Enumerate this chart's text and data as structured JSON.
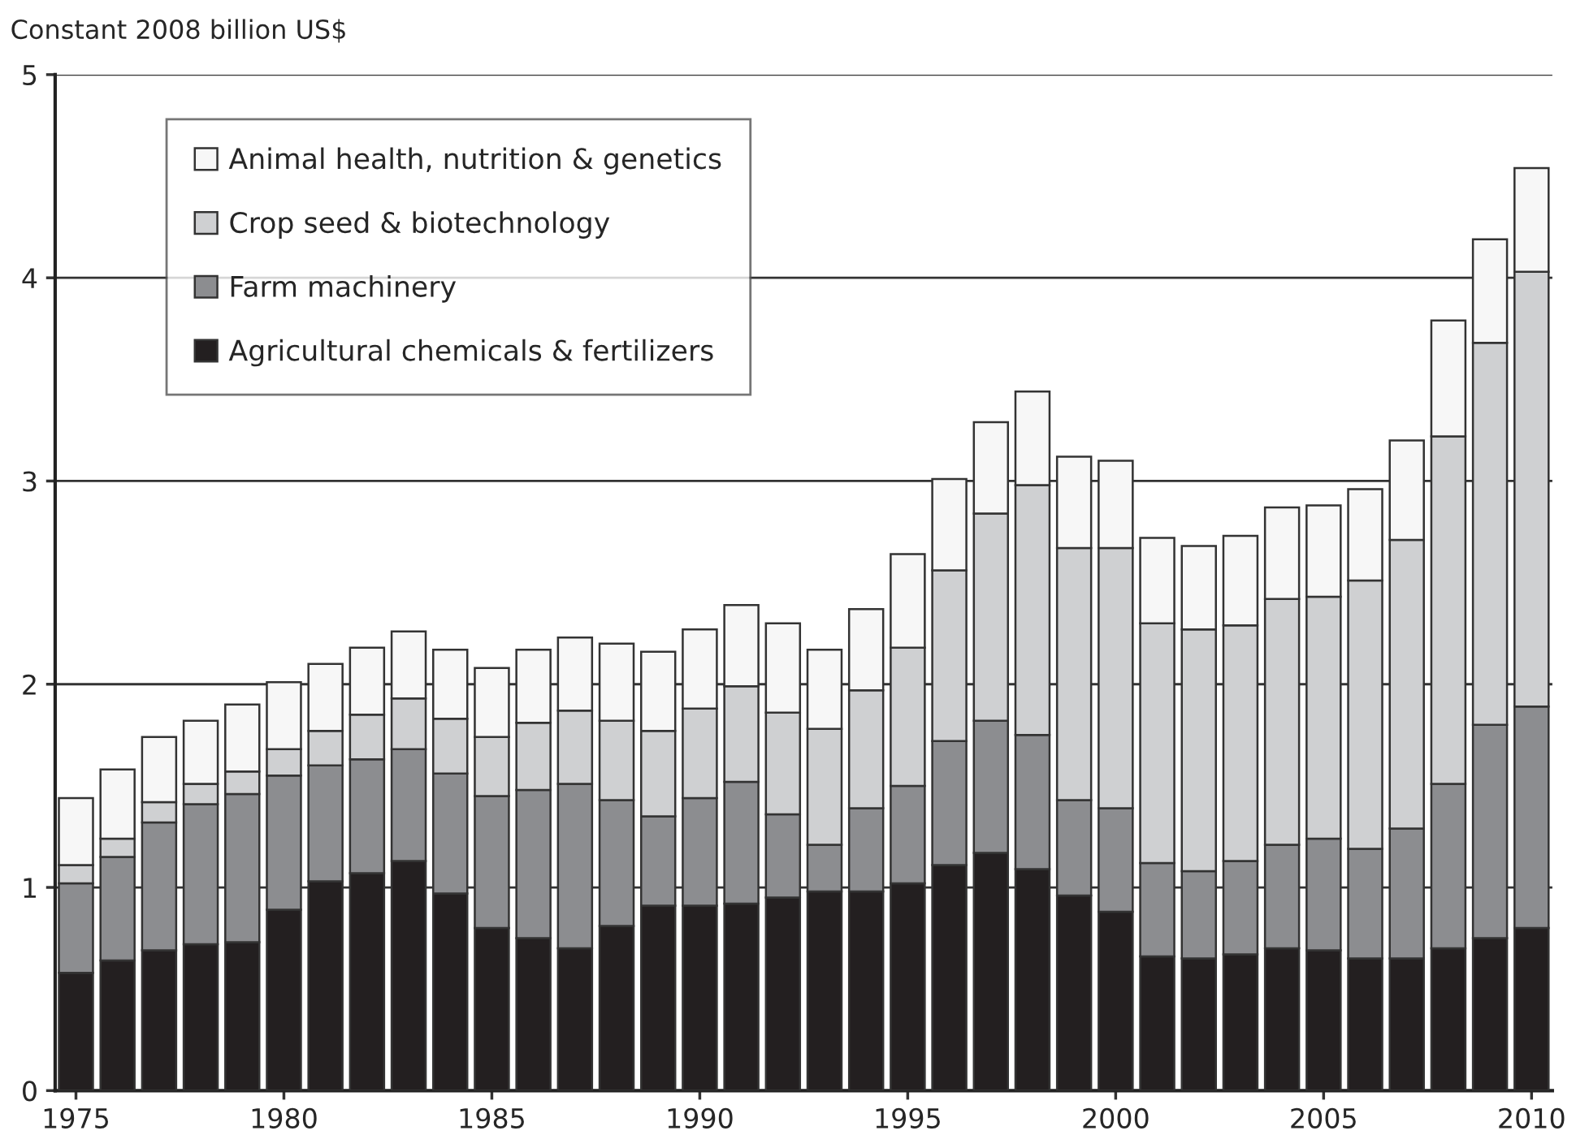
{
  "chart_data": {
    "type": "bar",
    "stacked": true,
    "ylabel": "Constant 2008 billion US$",
    "x": [
      1975,
      1976,
      1977,
      1978,
      1979,
      1980,
      1981,
      1982,
      1983,
      1984,
      1985,
      1986,
      1987,
      1988,
      1989,
      1990,
      1991,
      1992,
      1993,
      1994,
      1995,
      1996,
      1997,
      1998,
      1999,
      2000,
      2001,
      2002,
      2003,
      2004,
      2005,
      2006,
      2007,
      2008,
      2009,
      2010
    ],
    "xlim": [
      1974.5,
      2010.5
    ],
    "xticks": [
      1975,
      1980,
      1985,
      1990,
      1995,
      2000,
      2005,
      2010
    ],
    "ylim": [
      0,
      5
    ],
    "yticks": [
      0,
      1,
      2,
      3,
      4,
      5
    ],
    "grid": "y",
    "legend": "top left",
    "series": [
      {
        "name": "Agricultural chemicals & fertilizers",
        "color": "#231f20",
        "values": [
          0.58,
          0.64,
          0.69,
          0.72,
          0.73,
          0.89,
          1.03,
          1.07,
          1.13,
          0.97,
          0.8,
          0.75,
          0.7,
          0.81,
          0.91,
          0.91,
          0.92,
          0.95,
          0.98,
          0.98,
          1.02,
          1.11,
          1.17,
          1.09,
          0.96,
          0.88,
          0.66,
          0.65,
          0.67,
          0.7,
          0.69,
          0.65,
          0.65,
          0.7,
          0.75,
          0.8
        ]
      },
      {
        "name": "Farm machinery",
        "color": "#8c8d90",
        "values": [
          0.44,
          0.51,
          0.63,
          0.69,
          0.73,
          0.66,
          0.57,
          0.56,
          0.55,
          0.59,
          0.65,
          0.73,
          0.81,
          0.62,
          0.44,
          0.53,
          0.6,
          0.41,
          0.23,
          0.41,
          0.48,
          0.61,
          0.65,
          0.66,
          0.47,
          0.51,
          0.46,
          0.43,
          0.46,
          0.51,
          0.55,
          0.54,
          0.64,
          0.81,
          1.05,
          1.09
        ]
      },
      {
        "name": "Crop seed & biotechnology",
        "color": "#cfd0d2",
        "values": [
          0.09,
          0.09,
          0.1,
          0.1,
          0.11,
          0.13,
          0.17,
          0.22,
          0.25,
          0.27,
          0.29,
          0.33,
          0.36,
          0.39,
          0.42,
          0.44,
          0.47,
          0.5,
          0.57,
          0.58,
          0.68,
          0.84,
          1.02,
          1.23,
          1.24,
          1.28,
          1.18,
          1.19,
          1.16,
          1.21,
          1.19,
          1.32,
          1.42,
          1.71,
          1.88,
          2.14
        ]
      },
      {
        "name": "Animal health, nutrition & genetics",
        "color": "#f7f7f7",
        "values": [
          0.33,
          0.34,
          0.32,
          0.31,
          0.33,
          0.33,
          0.33,
          0.33,
          0.33,
          0.34,
          0.34,
          0.36,
          0.36,
          0.38,
          0.39,
          0.39,
          0.4,
          0.44,
          0.39,
          0.4,
          0.46,
          0.45,
          0.45,
          0.46,
          0.45,
          0.43,
          0.42,
          0.41,
          0.44,
          0.45,
          0.45,
          0.45,
          0.49,
          0.57,
          0.51,
          0.51
        ]
      }
    ]
  }
}
